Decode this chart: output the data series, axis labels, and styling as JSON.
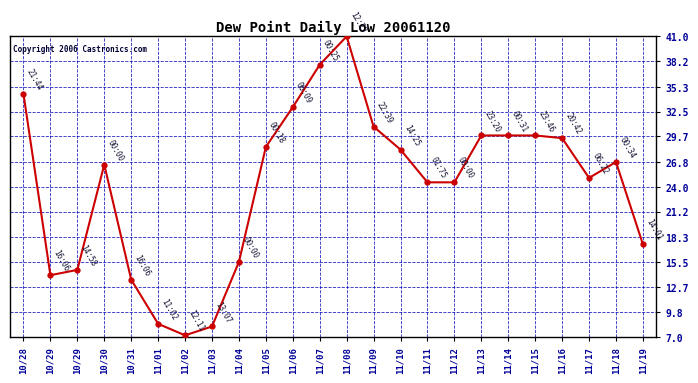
{
  "title": "Dew Point Daily Low 20061120",
  "copyright": "Copyright 2006 Castronics.com",
  "x_labels": [
    "10/28",
    "10/29",
    "10/29",
    "10/30",
    "10/31",
    "11/01",
    "11/02",
    "11/03",
    "11/04",
    "11/05",
    "11/06",
    "11/07",
    "11/08",
    "11/09",
    "11/10",
    "11/11",
    "11/12",
    "11/13",
    "11/14",
    "11/15",
    "11/16",
    "11/17",
    "11/18",
    "11/19"
  ],
  "y_values": [
    34.5,
    14.0,
    14.6,
    26.5,
    13.5,
    8.5,
    7.2,
    8.2,
    15.5,
    28.5,
    33.0,
    37.8,
    41.0,
    30.8,
    28.2,
    24.5,
    24.5,
    29.8,
    29.8,
    29.8,
    29.5,
    25.0,
    26.8,
    17.5
  ],
  "point_labels": [
    "21:44",
    "16:06",
    "14:58",
    "00:00",
    "16:06",
    "11:02",
    "12:11",
    "13:07",
    "00:00",
    "00:18",
    "06:09",
    "00:25",
    "12:27",
    "22:39",
    "14:25",
    "01:75",
    "00:00",
    "23:20",
    "00:31",
    "23:46",
    "20:42",
    "06:22",
    "00:34",
    "14:01"
  ],
  "line_color": "#cc0000",
  "marker_color": "#cc0000",
  "bg_color": "#ffffff",
  "plot_bg_color": "#ffffff",
  "grid_color": "#0000bb",
  "tick_label_color": "#000099",
  "title_color": "#000000",
  "y_ticks": [
    7.0,
    9.8,
    12.7,
    15.5,
    18.3,
    21.2,
    24.0,
    26.8,
    29.7,
    32.5,
    35.3,
    38.2,
    41.0
  ],
  "y_min": 7.0,
  "y_max": 41.0
}
